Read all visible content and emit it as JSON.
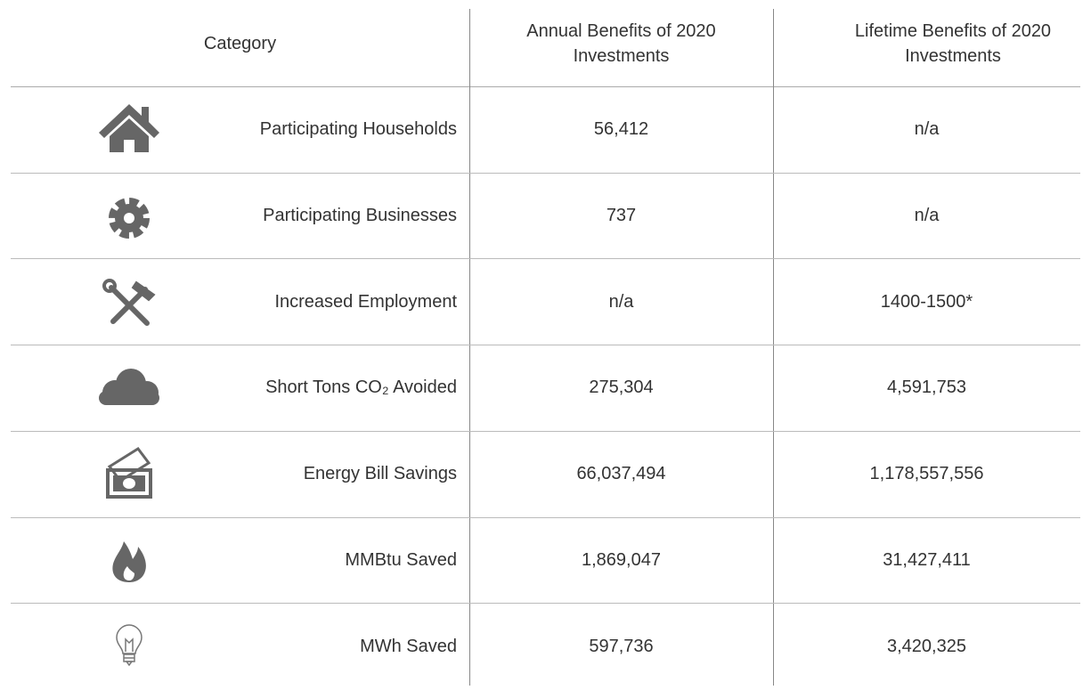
{
  "table": {
    "header": [
      "Category",
      "Annual Benefits of 2020 Investments",
      "Lifetime Benefits of 2020 Investments"
    ],
    "rows": [
      [
        "Participating Households",
        "56,412",
        "n/a"
      ],
      [
        "Participating Businesses",
        "737",
        "n/a"
      ],
      [
        "Increased Employment",
        "n/a",
        "1400-1500*"
      ],
      [
        "Short Tons CO₂ Avoided",
        "275,304",
        "4,591,753"
      ],
      [
        "Energy Bill Savings",
        "66,037,494",
        "1,178,557,556"
      ],
      [
        "MMBtu Saved",
        "1,869,047",
        "31,427,411"
      ],
      [
        "MWh Saved",
        "597,736",
        "3,420,325"
      ]
    ]
  }
}
